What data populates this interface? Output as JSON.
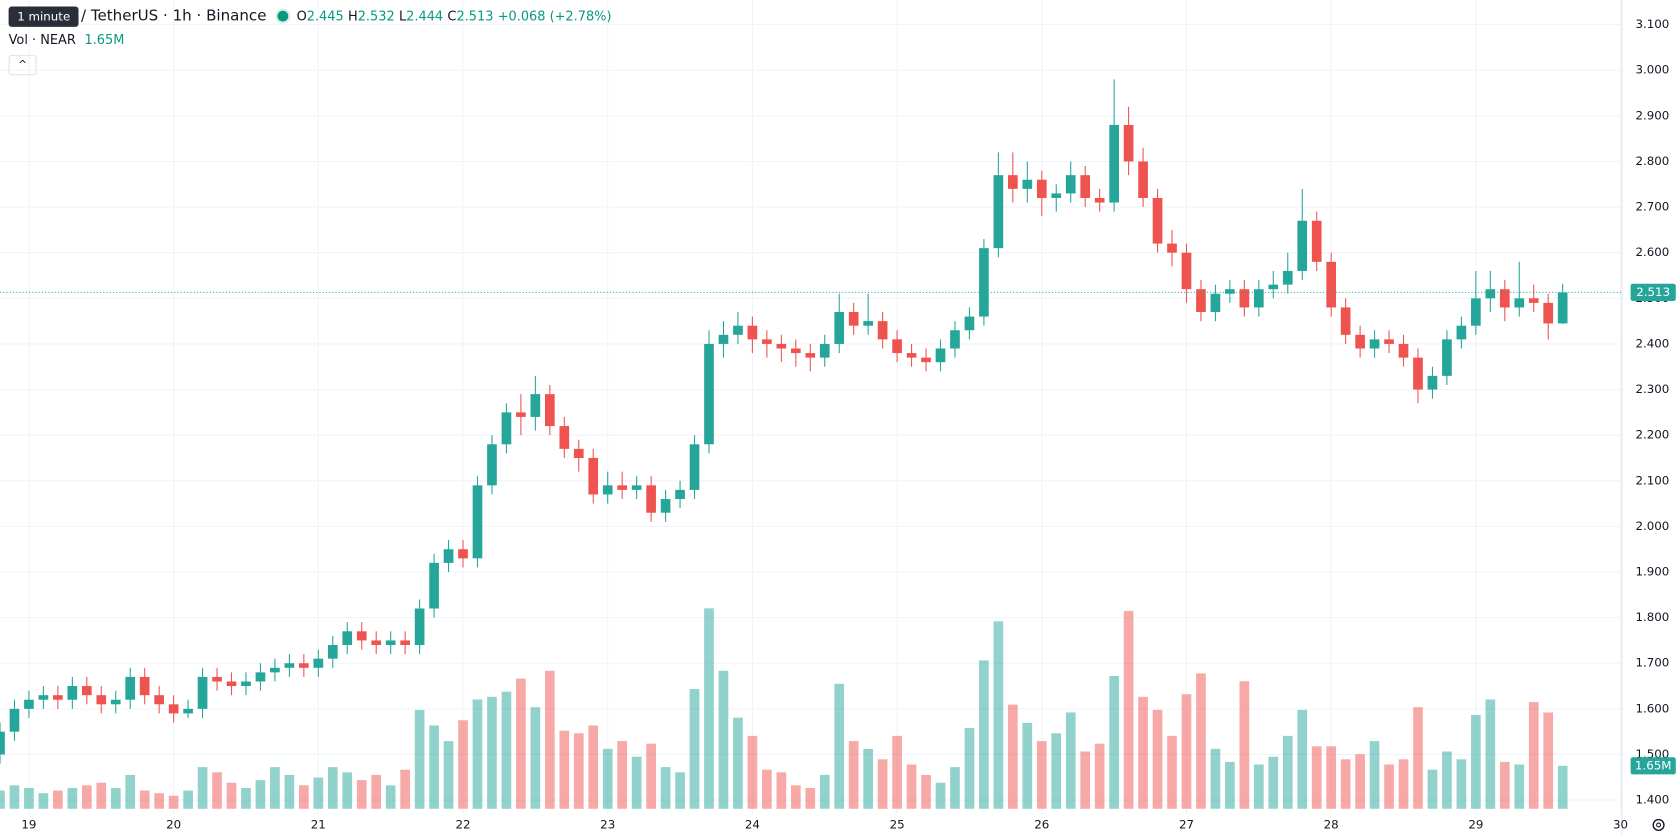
{
  "header": {
    "tooltip": "1 minute",
    "symbol": "/ TetherUS · 1h · Binance",
    "o": "O",
    "h": "H",
    "l": "L",
    "c": "C",
    "change": "+0.068 (+2.78%)",
    "volume_name": "Vol · NEAR",
    "volume_label": "1.65M"
  },
  "chart_data": {
    "type": "candlestick",
    "up_color": "#26a69a",
    "down_color": "#ef5350",
    "grid": true,
    "x": [
      18.8,
      18.9,
      19.0,
      19.1,
      19.2,
      19.3,
      19.4,
      19.5,
      19.6,
      19.7,
      19.8,
      19.9,
      20.0,
      20.1,
      20.2,
      20.3,
      20.4,
      20.5,
      20.6,
      20.7,
      20.8,
      20.9,
      21.0,
      21.1,
      21.2,
      21.3,
      21.4,
      21.5,
      21.6,
      21.7,
      21.8,
      21.9,
      22.0,
      22.1,
      22.2,
      22.3,
      22.4,
      22.5,
      22.6,
      22.7,
      22.8,
      22.9,
      23.0,
      23.1,
      23.2,
      23.3,
      23.4,
      23.5,
      23.6,
      23.7,
      23.8,
      23.9,
      24.0,
      24.1,
      24.2,
      24.3,
      24.4,
      24.5,
      24.6,
      24.7,
      24.8,
      24.9,
      25.0,
      25.1,
      25.2,
      25.3,
      25.4,
      25.5,
      25.6,
      25.7,
      25.8,
      25.9,
      26.0,
      26.1,
      26.2,
      26.3,
      26.4,
      26.5,
      26.6,
      26.7,
      26.8,
      26.9,
      27.0,
      27.1,
      27.2,
      27.3,
      27.4,
      27.5,
      27.6,
      27.7,
      27.8,
      27.9,
      28.0,
      28.1,
      28.2,
      28.3,
      28.4,
      28.5,
      28.6,
      28.7,
      28.8,
      28.9,
      29.0,
      29.1,
      29.2,
      29.3,
      29.4,
      29.5,
      29.6
    ],
    "open": [
      1.5,
      1.55,
      1.6,
      1.62,
      1.63,
      1.62,
      1.65,
      1.63,
      1.61,
      1.62,
      1.67,
      1.63,
      1.61,
      1.59,
      1.6,
      1.67,
      1.66,
      1.65,
      1.66,
      1.68,
      1.69,
      1.7,
      1.69,
      1.71,
      1.74,
      1.77,
      1.75,
      1.74,
      1.75,
      1.74,
      1.82,
      1.92,
      1.95,
      1.93,
      2.09,
      2.18,
      2.25,
      2.24,
      2.29,
      2.22,
      2.17,
      2.15,
      2.07,
      2.09,
      2.08,
      2.09,
      2.03,
      2.06,
      2.08,
      2.18,
      2.4,
      2.42,
      2.44,
      2.41,
      2.4,
      2.39,
      2.38,
      2.37,
      2.4,
      2.47,
      2.44,
      2.45,
      2.41,
      2.38,
      2.37,
      2.36,
      2.39,
      2.43,
      2.46,
      2.61,
      2.77,
      2.74,
      2.76,
      2.72,
      2.73,
      2.77,
      2.72,
      2.71,
      2.88,
      2.8,
      2.72,
      2.62,
      2.6,
      2.52,
      2.47,
      2.51,
      2.52,
      2.48,
      2.52,
      2.53,
      2.56,
      2.67,
      2.58,
      2.48,
      2.42,
      2.39,
      2.41,
      2.4,
      2.37,
      2.3,
      2.33,
      2.41,
      2.44,
      2.5,
      2.52,
      2.48,
      2.5,
      2.49,
      2.445
    ],
    "high": [
      1.57,
      1.62,
      1.64,
      1.65,
      1.65,
      1.67,
      1.67,
      1.65,
      1.64,
      1.69,
      1.69,
      1.65,
      1.63,
      1.62,
      1.69,
      1.69,
      1.68,
      1.68,
      1.7,
      1.71,
      1.72,
      1.72,
      1.73,
      1.76,
      1.79,
      1.79,
      1.77,
      1.77,
      1.77,
      1.84,
      1.94,
      1.97,
      1.97,
      2.11,
      2.2,
      2.27,
      2.29,
      2.33,
      2.31,
      2.24,
      2.19,
      2.17,
      2.12,
      2.12,
      2.11,
      2.11,
      2.08,
      2.1,
      2.2,
      2.43,
      2.45,
      2.47,
      2.46,
      2.43,
      2.42,
      2.41,
      2.4,
      2.42,
      2.51,
      2.49,
      2.51,
      2.47,
      2.43,
      2.4,
      2.39,
      2.41,
      2.45,
      2.48,
      2.63,
      2.82,
      2.82,
      2.8,
      2.78,
      2.75,
      2.8,
      2.79,
      2.74,
      2.98,
      2.92,
      2.83,
      2.74,
      2.65,
      2.62,
      2.54,
      2.53,
      2.54,
      2.54,
      2.54,
      2.56,
      2.6,
      2.74,
      2.69,
      2.6,
      2.5,
      2.44,
      2.43,
      2.43,
      2.42,
      2.39,
      2.35,
      2.43,
      2.46,
      2.56,
      2.56,
      2.54,
      2.58,
      2.53,
      2.51,
      2.532
    ],
    "low": [
      1.48,
      1.53,
      1.58,
      1.6,
      1.6,
      1.6,
      1.61,
      1.59,
      1.59,
      1.6,
      1.61,
      1.59,
      1.57,
      1.58,
      1.58,
      1.64,
      1.63,
      1.63,
      1.64,
      1.66,
      1.67,
      1.67,
      1.67,
      1.69,
      1.72,
      1.73,
      1.72,
      1.72,
      1.72,
      1.72,
      1.8,
      1.9,
      1.91,
      1.91,
      2.07,
      2.16,
      2.2,
      2.21,
      2.2,
      2.15,
      2.12,
      2.05,
      2.05,
      2.06,
      2.06,
      2.01,
      2.01,
      2.04,
      2.06,
      2.16,
      2.37,
      2.4,
      2.38,
      2.37,
      2.36,
      2.35,
      2.34,
      2.35,
      2.38,
      2.42,
      2.42,
      2.39,
      2.36,
      2.35,
      2.34,
      2.34,
      2.37,
      2.41,
      2.44,
      2.59,
      2.71,
      2.71,
      2.68,
      2.69,
      2.71,
      2.7,
      2.69,
      2.69,
      2.77,
      2.7,
      2.6,
      2.57,
      2.49,
      2.45,
      2.45,
      2.49,
      2.46,
      2.46,
      2.5,
      2.51,
      2.54,
      2.56,
      2.46,
      2.4,
      2.37,
      2.37,
      2.38,
      2.35,
      2.27,
      2.28,
      2.31,
      2.39,
      2.42,
      2.47,
      2.45,
      2.46,
      2.47,
      2.41,
      2.444
    ],
    "close": [
      1.55,
      1.6,
      1.62,
      1.63,
      1.62,
      1.65,
      1.63,
      1.61,
      1.62,
      1.67,
      1.63,
      1.61,
      1.59,
      1.6,
      1.67,
      1.66,
      1.65,
      1.66,
      1.68,
      1.69,
      1.7,
      1.69,
      1.71,
      1.74,
      1.77,
      1.75,
      1.74,
      1.75,
      1.74,
      1.82,
      1.92,
      1.95,
      1.93,
      2.09,
      2.18,
      2.25,
      2.24,
      2.29,
      2.22,
      2.17,
      2.15,
      2.07,
      2.09,
      2.08,
      2.09,
      2.03,
      2.06,
      2.08,
      2.18,
      2.4,
      2.42,
      2.44,
      2.41,
      2.4,
      2.39,
      2.38,
      2.37,
      2.4,
      2.47,
      2.44,
      2.45,
      2.41,
      2.38,
      2.37,
      2.36,
      2.39,
      2.43,
      2.46,
      2.61,
      2.77,
      2.74,
      2.76,
      2.72,
      2.73,
      2.77,
      2.72,
      2.71,
      2.88,
      2.8,
      2.72,
      2.62,
      2.6,
      2.52,
      2.47,
      2.51,
      2.52,
      2.48,
      2.52,
      2.53,
      2.56,
      2.67,
      2.58,
      2.48,
      2.42,
      2.39,
      2.41,
      2.4,
      2.37,
      2.3,
      2.33,
      2.41,
      2.44,
      2.5,
      2.52,
      2.48,
      2.5,
      2.49,
      2.445,
      2.513
    ],
    "volume": [
      0.7,
      0.9,
      0.8,
      0.6,
      0.7,
      0.8,
      0.9,
      1.0,
      0.8,
      1.3,
      0.7,
      0.6,
      0.5,
      0.7,
      1.6,
      1.4,
      1.0,
      0.8,
      1.1,
      1.6,
      1.3,
      0.9,
      1.2,
      1.6,
      1.4,
      1.1,
      1.3,
      0.9,
      1.5,
      3.8,
      3.2,
      2.6,
      3.4,
      4.2,
      4.3,
      4.5,
      5.0,
      3.9,
      5.3,
      3.0,
      2.9,
      3.2,
      2.3,
      2.6,
      2.0,
      2.5,
      1.6,
      1.4,
      4.6,
      7.7,
      5.3,
      3.5,
      2.8,
      1.5,
      1.4,
      0.9,
      0.8,
      1.3,
      4.8,
      2.6,
      2.3,
      1.9,
      2.8,
      1.7,
      1.3,
      1.0,
      1.6,
      3.1,
      5.7,
      7.2,
      4.0,
      3.3,
      2.6,
      2.9,
      3.7,
      2.2,
      2.5,
      5.1,
      7.6,
      4.3,
      3.8,
      2.8,
      4.4,
      5.2,
      2.3,
      1.8,
      4.9,
      1.7,
      2.0,
      2.8,
      3.8,
      2.4,
      2.4,
      1.9,
      2.1,
      2.6,
      1.7,
      1.9,
      3.9,
      1.5,
      2.2,
      1.9,
      3.6,
      4.2,
      1.8,
      1.7,
      4.1,
      3.7,
      1.65
    ],
    "xlim": [
      18.8,
      30.01
    ],
    "xticks": [
      19,
      20,
      21,
      22,
      23,
      24,
      25,
      26,
      27,
      28,
      29,
      30
    ],
    "ylim": [
      1.369,
      3.154
    ],
    "yticks": [
      {
        "value": 1.4,
        "label": "1.400"
      },
      {
        "value": 1.5,
        "label": "1.500"
      },
      {
        "value": 1.6,
        "label": "1.600"
      },
      {
        "value": 1.7,
        "label": "1.700"
      },
      {
        "value": 1.8,
        "label": "1.800"
      },
      {
        "value": 1.9,
        "label": "1.900"
      },
      {
        "value": 2.0,
        "label": "2.000"
      },
      {
        "value": 2.1,
        "label": "2.100"
      },
      {
        "value": 2.2,
        "label": "2.200"
      },
      {
        "value": 2.3,
        "label": "2.300"
      },
      {
        "value": 2.4,
        "label": "2.400"
      },
      {
        "value": 2.5,
        "label": "2.500"
      },
      {
        "value": 2.6,
        "label": "2.600"
      },
      {
        "value": 2.7,
        "label": "2.700"
      },
      {
        "value": 2.8,
        "label": "2.800"
      },
      {
        "value": 2.9,
        "label": "2.900"
      },
      {
        "value": 3.0,
        "label": "3.000"
      },
      {
        "value": 3.1,
        "label": "3.100"
      }
    ],
    "y2lim": [
      -0.21,
      31.07
    ]
  }
}
